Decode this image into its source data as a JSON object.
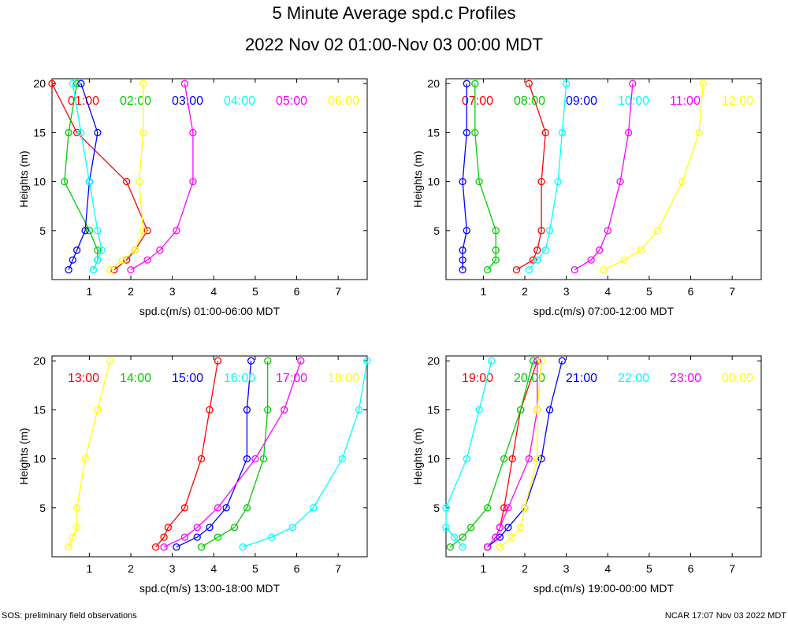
{
  "title": "5 Minute Average spd.c Profiles",
  "subtitle": "2022 Nov 02 01:00-Nov 03 00:00 MDT",
  "footer_left": "SOS: preliminary field observations",
  "footer_right": "NCAR 17:07 Nov 03 2022 MDT",
  "colors": [
    "#ff0000",
    "#00cc00",
    "#0000ff",
    "#00ffff",
    "#ff00ff",
    "#ffff00"
  ],
  "chart_data": [
    {
      "type": "line",
      "xlabel": "spd.c(m/s) 01:00-06:00 MDT",
      "ylabel": "Heights (m)",
      "xlim": [
        0.1,
        7.7
      ],
      "ylim": [
        0,
        20.5
      ],
      "xticks": [
        1,
        2,
        3,
        4,
        5,
        6,
        7
      ],
      "yticks": [
        5,
        10,
        15,
        20
      ],
      "heights": [
        1,
        2,
        3,
        5,
        10,
        15,
        20
      ],
      "series": [
        {
          "name": "01:00",
          "values": [
            1.6,
            1.9,
            2.1,
            2.4,
            1.9,
            0.7,
            0.1
          ]
        },
        {
          "name": "02:00",
          "values": [
            1.1,
            1.2,
            1.2,
            1.0,
            0.4,
            0.5,
            0.7
          ]
        },
        {
          "name": "03:00",
          "values": [
            0.5,
            0.6,
            0.7,
            0.9,
            1.0,
            1.2,
            0.8
          ]
        },
        {
          "name": "04:00",
          "values": [
            1.1,
            1.2,
            1.3,
            1.2,
            1.0,
            0.8,
            0.6
          ]
        },
        {
          "name": "05:00",
          "values": [
            2.0,
            2.4,
            2.7,
            3.1,
            3.5,
            3.5,
            3.3
          ]
        },
        {
          "name": "06:00",
          "values": [
            1.5,
            1.8,
            2.1,
            2.3,
            2.2,
            2.3,
            2.3
          ]
        }
      ]
    },
    {
      "type": "line",
      "xlabel": "spd.c(m/s) 07:00-12:00 MDT",
      "ylabel": "Heights (m)",
      "xlim": [
        0.1,
        7.7
      ],
      "ylim": [
        0,
        20.5
      ],
      "xticks": [
        1,
        2,
        3,
        4,
        5,
        6,
        7
      ],
      "yticks": [
        5,
        10,
        15,
        20
      ],
      "heights": [
        1,
        2,
        3,
        5,
        10,
        15,
        20
      ],
      "series": [
        {
          "name": "07:00",
          "values": [
            1.8,
            2.2,
            2.3,
            2.4,
            2.4,
            2.5,
            2.1
          ]
        },
        {
          "name": "08:00",
          "values": [
            1.1,
            1.3,
            1.3,
            1.3,
            0.9,
            0.8,
            0.8
          ]
        },
        {
          "name": "09:00",
          "values": [
            0.5,
            0.5,
            0.5,
            0.6,
            0.5,
            0.6,
            0.6
          ]
        },
        {
          "name": "10:00",
          "values": [
            2.1,
            2.3,
            2.5,
            2.6,
            2.8,
            2.9,
            3.0
          ]
        },
        {
          "name": "11:00",
          "values": [
            3.2,
            3.6,
            3.8,
            4.0,
            4.3,
            4.5,
            4.6
          ]
        },
        {
          "name": "12:00",
          "values": [
            3.9,
            4.4,
            4.8,
            5.2,
            5.8,
            6.2,
            6.3
          ]
        }
      ]
    },
    {
      "type": "line",
      "xlabel": "spd.c(m/s) 13:00-18:00 MDT",
      "ylabel": "Heights (m)",
      "xlim": [
        0.1,
        7.7
      ],
      "ylim": [
        0,
        20.5
      ],
      "xticks": [
        1,
        2,
        3,
        4,
        5,
        6,
        7
      ],
      "yticks": [
        5,
        10,
        15,
        20
      ],
      "heights": [
        1,
        2,
        3,
        5,
        10,
        15,
        20
      ],
      "series": [
        {
          "name": "13:00",
          "values": [
            2.6,
            2.8,
            2.9,
            3.3,
            3.7,
            3.9,
            4.1
          ]
        },
        {
          "name": "14:00",
          "values": [
            3.7,
            4.1,
            4.5,
            4.8,
            5.2,
            5.3,
            5.3
          ]
        },
        {
          "name": "15:00",
          "values": [
            3.1,
            3.6,
            3.9,
            4.3,
            4.8,
            4.8,
            4.9
          ]
        },
        {
          "name": "16:00",
          "values": [
            4.7,
            5.4,
            5.9,
            6.4,
            7.1,
            7.5,
            7.7
          ]
        },
        {
          "name": "17:00",
          "values": [
            2.8,
            3.3,
            3.6,
            4.1,
            5.0,
            5.7,
            6.1
          ]
        },
        {
          "name": "18:00",
          "values": [
            0.5,
            0.6,
            0.7,
            0.7,
            0.9,
            1.2,
            1.5
          ]
        }
      ]
    },
    {
      "type": "line",
      "xlabel": "spd.c(m/s) 19:00-00:00 MDT",
      "ylabel": "Heights (m)",
      "xlim": [
        0.1,
        7.7
      ],
      "ylim": [
        0,
        20.5
      ],
      "xticks": [
        1,
        2,
        3,
        4,
        5,
        6,
        7
      ],
      "yticks": [
        5,
        10,
        15,
        20
      ],
      "heights": [
        1,
        2,
        3,
        5,
        10,
        15,
        20
      ],
      "series": [
        {
          "name": "19:00",
          "values": [
            1.1,
            1.3,
            1.4,
            1.5,
            1.7,
            1.9,
            2.3
          ]
        },
        {
          "name": "20:00",
          "values": [
            0.2,
            0.5,
            0.7,
            1.1,
            1.5,
            1.9,
            2.2
          ]
        },
        {
          "name": "21:00",
          "values": [
            1.1,
            1.4,
            1.6,
            2.0,
            2.4,
            2.6,
            2.9
          ]
        },
        {
          "name": "22:00",
          "values": [
            0.5,
            0.3,
            0.1,
            0.1,
            0.6,
            0.9,
            1.2
          ]
        },
        {
          "name": "23:00",
          "values": [
            1.1,
            1.3,
            1.4,
            1.6,
            2.1,
            2.3,
            2.3
          ]
        },
        {
          "name": "00:00",
          "values": [
            1.4,
            1.7,
            1.9,
            2.0,
            2.3,
            2.3,
            2.4
          ]
        }
      ]
    }
  ]
}
